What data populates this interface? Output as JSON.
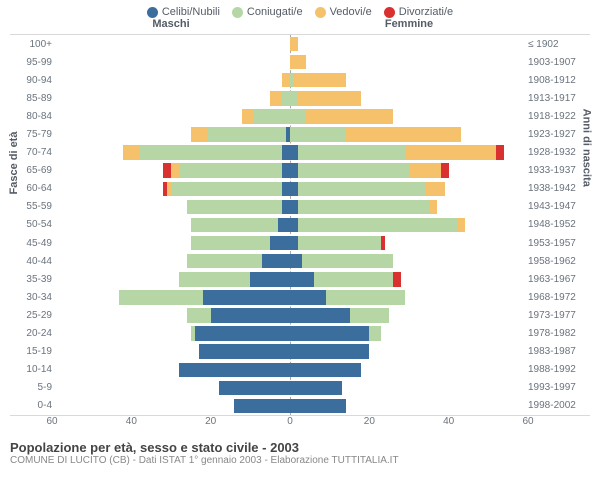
{
  "legend": [
    {
      "label": "Celibi/Nubili",
      "color": "#3b6e9c"
    },
    {
      "label": "Coniugati/e",
      "color": "#b6d7a5"
    },
    {
      "label": "Vedovi/e",
      "color": "#f5c26b"
    },
    {
      "label": "Divorziati/e",
      "color": "#d93030"
    }
  ],
  "header_male": "Maschi",
  "header_female": "Femmine",
  "y_left_title": "Fasce di età",
  "y_right_title": "Anni di nascita",
  "footer_title": "Popolazione per età, sesso e stato civile - 2003",
  "footer_sub": "COMUNE DI LUCITO (CB) - Dati ISTAT 1° gennaio 2003 - Elaborazione TUTTITALIA.IT",
  "xmax": 60,
  "xticks": [
    60,
    40,
    20,
    0,
    20,
    40,
    60
  ],
  "grid_color": "#dddddd",
  "background_color": "#ffffff",
  "label_color": "#6a737d",
  "label_fontsize": 10,
  "rows": [
    {
      "age": "100+",
      "birth": "≤ 1902",
      "m": [
        0,
        0,
        0,
        0
      ],
      "f": [
        0,
        0,
        2,
        0
      ]
    },
    {
      "age": "95-99",
      "birth": "1903-1907",
      "m": [
        0,
        0,
        0,
        0
      ],
      "f": [
        0,
        0,
        4,
        0
      ]
    },
    {
      "age": "90-94",
      "birth": "1908-1912",
      "m": [
        0,
        0,
        2,
        0
      ],
      "f": [
        0,
        1,
        13,
        0
      ]
    },
    {
      "age": "85-89",
      "birth": "1913-1917",
      "m": [
        0,
        2,
        3,
        0
      ],
      "f": [
        0,
        2,
        16,
        0
      ]
    },
    {
      "age": "80-84",
      "birth": "1918-1922",
      "m": [
        0,
        9,
        3,
        0
      ],
      "f": [
        0,
        4,
        22,
        0
      ]
    },
    {
      "age": "75-79",
      "birth": "1923-1927",
      "m": [
        1,
        20,
        4,
        0
      ],
      "f": [
        0,
        14,
        29,
        0
      ]
    },
    {
      "age": "70-74",
      "birth": "1928-1932",
      "m": [
        2,
        36,
        4,
        0
      ],
      "f": [
        2,
        27,
        23,
        2
      ]
    },
    {
      "age": "65-69",
      "birth": "1933-1937",
      "m": [
        2,
        26,
        2,
        2
      ],
      "f": [
        2,
        28,
        8,
        2
      ]
    },
    {
      "age": "60-64",
      "birth": "1938-1942",
      "m": [
        2,
        28,
        1,
        1
      ],
      "f": [
        2,
        32,
        5,
        0
      ]
    },
    {
      "age": "55-59",
      "birth": "1943-1947",
      "m": [
        2,
        24,
        0,
        0
      ],
      "f": [
        2,
        33,
        2,
        0
      ]
    },
    {
      "age": "50-54",
      "birth": "1948-1952",
      "m": [
        3,
        22,
        0,
        0
      ],
      "f": [
        2,
        40,
        2,
        0
      ]
    },
    {
      "age": "45-49",
      "birth": "1953-1957",
      "m": [
        5,
        20,
        0,
        0
      ],
      "f": [
        2,
        21,
        0,
        1
      ]
    },
    {
      "age": "40-44",
      "birth": "1958-1962",
      "m": [
        7,
        19,
        0,
        0
      ],
      "f": [
        3,
        23,
        0,
        0
      ]
    },
    {
      "age": "35-39",
      "birth": "1963-1967",
      "m": [
        10,
        18,
        0,
        0
      ],
      "f": [
        6,
        20,
        0,
        2
      ]
    },
    {
      "age": "30-34",
      "birth": "1968-1972",
      "m": [
        22,
        21,
        0,
        0
      ],
      "f": [
        9,
        20,
        0,
        0
      ]
    },
    {
      "age": "25-29",
      "birth": "1973-1977",
      "m": [
        20,
        6,
        0,
        0
      ],
      "f": [
        15,
        10,
        0,
        0
      ]
    },
    {
      "age": "20-24",
      "birth": "1978-1982",
      "m": [
        24,
        1,
        0,
        0
      ],
      "f": [
        20,
        3,
        0,
        0
      ]
    },
    {
      "age": "15-19",
      "birth": "1983-1987",
      "m": [
        23,
        0,
        0,
        0
      ],
      "f": [
        20,
        0,
        0,
        0
      ]
    },
    {
      "age": "10-14",
      "birth": "1988-1992",
      "m": [
        28,
        0,
        0,
        0
      ],
      "f": [
        18,
        0,
        0,
        0
      ]
    },
    {
      "age": "5-9",
      "birth": "1993-1997",
      "m": [
        18,
        0,
        0,
        0
      ],
      "f": [
        13,
        0,
        0,
        0
      ]
    },
    {
      "age": "0-4",
      "birth": "1998-2002",
      "m": [
        14,
        0,
        0,
        0
      ],
      "f": [
        14,
        0,
        0,
        0
      ]
    }
  ]
}
